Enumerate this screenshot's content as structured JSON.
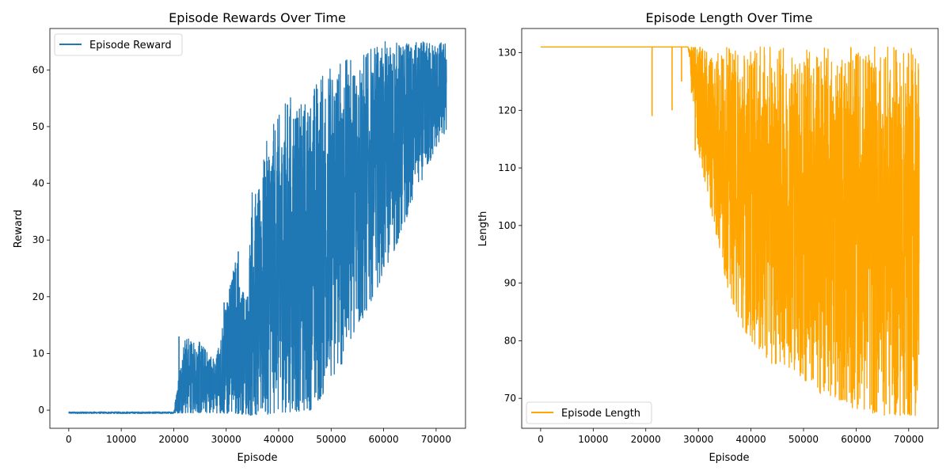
{
  "chart_data": [
    {
      "type": "line",
      "title": "Episode Rewards Over Time",
      "xlabel": "Episode",
      "ylabel": "Reward",
      "xlim": [
        -3600,
        75600
      ],
      "ylim": [
        -3.2,
        67.3
      ],
      "xticks": [
        0,
        10000,
        20000,
        30000,
        40000,
        50000,
        60000,
        70000
      ],
      "xtick_labels": [
        "0",
        "10000",
        "20000",
        "30000",
        "40000",
        "50000",
        "60000",
        "70000"
      ],
      "yticks": [
        0,
        10,
        20,
        30,
        40,
        50,
        60
      ],
      "ytick_labels": [
        "0",
        "10",
        "20",
        "30",
        "40",
        "50",
        "60"
      ],
      "legend_position": "top-left",
      "series": [
        {
          "name": "Episode Reward",
          "color": "#1f77b4",
          "x": [
            0,
            5000,
            10000,
            15000,
            20000,
            22000,
            25000,
            28000,
            30000,
            32000,
            33000,
            34000,
            35000,
            36000,
            38000,
            40000,
            42000,
            44000,
            46000,
            48000,
            50000,
            52000,
            54000,
            56000,
            58000,
            60000,
            62000,
            64000,
            66000,
            68000,
            70000,
            72000
          ],
          "upper": [
            -0.3,
            -0.3,
            -0.3,
            -0.3,
            -0.3,
            13,
            12,
            9,
            19,
            28,
            22,
            21,
            41,
            38,
            49,
            52,
            56,
            54,
            56,
            60,
            61,
            62,
            62,
            63,
            64,
            65,
            65,
            65,
            65,
            65,
            65,
            65
          ],
          "lower": [
            -0.6,
            -0.6,
            -0.6,
            -0.6,
            -0.6,
            -0.5,
            -0.5,
            -0.5,
            -0.6,
            -0.6,
            -0.7,
            -0.8,
            -1.0,
            -0.9,
            -0.7,
            -0.5,
            -0.3,
            -0.2,
            0,
            2,
            5,
            8,
            12,
            16,
            20,
            24,
            28,
            33,
            38,
            42,
            46,
            49
          ]
        }
      ],
      "spikes": [
        {
          "x": 21000,
          "y": 13
        },
        {
          "x": 23300,
          "y": 1
        },
        {
          "x": 24900,
          "y": 12
        },
        {
          "x": 26900,
          "y": 7
        },
        {
          "x": 28900,
          "y": 9
        },
        {
          "x": 29600,
          "y": 19
        },
        {
          "x": 30200,
          "y": 19
        },
        {
          "x": 31800,
          "y": 25
        },
        {
          "x": 32300,
          "y": 28
        }
      ]
    },
    {
      "type": "line",
      "title": "Episode Length Over Time",
      "xlabel": "Episode",
      "ylabel": "Length",
      "xlim": [
        -3600,
        75600
      ],
      "ylim": [
        64.8,
        134.2
      ],
      "xticks": [
        0,
        10000,
        20000,
        30000,
        40000,
        50000,
        60000,
        70000
      ],
      "xtick_labels": [
        "0",
        "10000",
        "20000",
        "30000",
        "40000",
        "50000",
        "60000",
        "70000"
      ],
      "yticks": [
        70,
        80,
        90,
        100,
        110,
        120,
        130
      ],
      "ytick_labels": [
        "70",
        "80",
        "90",
        "100",
        "110",
        "120",
        "130"
      ],
      "legend_position": "bottom-left",
      "series": [
        {
          "name": "Episode Length",
          "color": "#ffa500",
          "x": [
            0,
            5000,
            10000,
            15000,
            20000,
            22000,
            25000,
            28000,
            30000,
            32000,
            33000,
            34000,
            35000,
            36000,
            38000,
            40000,
            42000,
            44000,
            46000,
            48000,
            50000,
            52000,
            54000,
            56000,
            58000,
            60000,
            62000,
            64000,
            66000,
            68000,
            70000,
            72000
          ],
          "upper": [
            131,
            131,
            131,
            131,
            131,
            131,
            131,
            131,
            131,
            131,
            131,
            131,
            131,
            131,
            131,
            131,
            131,
            131,
            131,
            131,
            131,
            131,
            131,
            131,
            131,
            131,
            131,
            131,
            131,
            131,
            131,
            131
          ],
          "lower": [
            131,
            131,
            131,
            131,
            131,
            131,
            131,
            131,
            113,
            104,
            100,
            96,
            91,
            88,
            83,
            80,
            78,
            76,
            76,
            75,
            73,
            72,
            70,
            70,
            69,
            68,
            68,
            67,
            67,
            67,
            67,
            67
          ]
        }
      ],
      "spikes": [
        {
          "x": 21200,
          "y": 119
        },
        {
          "x": 25000,
          "y": 120
        },
        {
          "x": 26800,
          "y": 125
        },
        {
          "x": 28700,
          "y": 123
        },
        {
          "x": 29400,
          "y": 113
        },
        {
          "x": 30300,
          "y": 113
        }
      ]
    }
  ]
}
